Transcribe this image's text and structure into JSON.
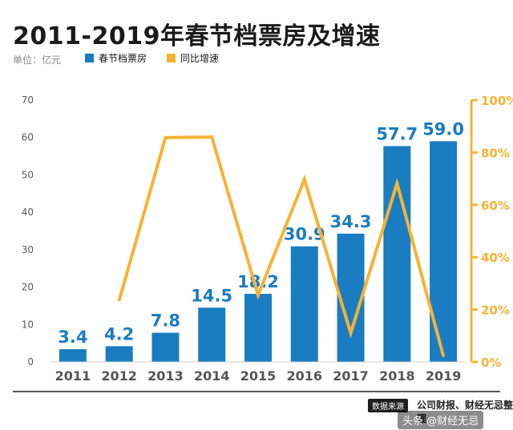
{
  "header": {
    "title": "2011-2019年春节档票房及增速",
    "unit": "单位：亿元"
  },
  "legend": {
    "bar_label": "春节档票房",
    "line_label": "同比增速"
  },
  "colors": {
    "bar": "#1a7cc1",
    "line": "#f5b335",
    "axis_text": "#5a5a5a",
    "right_axis_text": "#f5b335",
    "grid": "#e6e6e6"
  },
  "footer": {
    "source_tag": "数据来源",
    "source_text": "公司财报、财经无忌整理",
    "watermark": "头条 @财经无忌"
  },
  "chart_data": {
    "type": "bar",
    "title": "2011-2019年春节档票房及增速",
    "categories": [
      "2011",
      "2012",
      "2013",
      "2014",
      "2015",
      "2016",
      "2017",
      "2018",
      "2019"
    ],
    "series": [
      {
        "name": "春节档票房",
        "type": "bar",
        "axis": "left",
        "values": [
          3.4,
          4.2,
          7.8,
          14.5,
          18.2,
          30.9,
          34.3,
          57.7,
          59.0
        ],
        "labels": [
          "3.4",
          "4.2",
          "7.8",
          "14.5",
          "18.2",
          "30.9",
          "34.3",
          "57.7",
          "59.0"
        ]
      },
      {
        "name": "同比增速",
        "type": "line",
        "axis": "right",
        "values": [
          null,
          23.5,
          85.7,
          85.9,
          25.5,
          69.8,
          11.0,
          68.2,
          2.3
        ]
      }
    ],
    "ylim": [
      0,
      70
    ],
    "yticks": [
      "0",
      "10",
      "20",
      "30",
      "40",
      "50",
      "60",
      "70"
    ],
    "y2lim": [
      0,
      100
    ],
    "y2ticks": [
      "0%",
      "20%",
      "40%",
      "60%",
      "80%",
      "100%"
    ],
    "grid": false,
    "legend_position": "top-left"
  }
}
